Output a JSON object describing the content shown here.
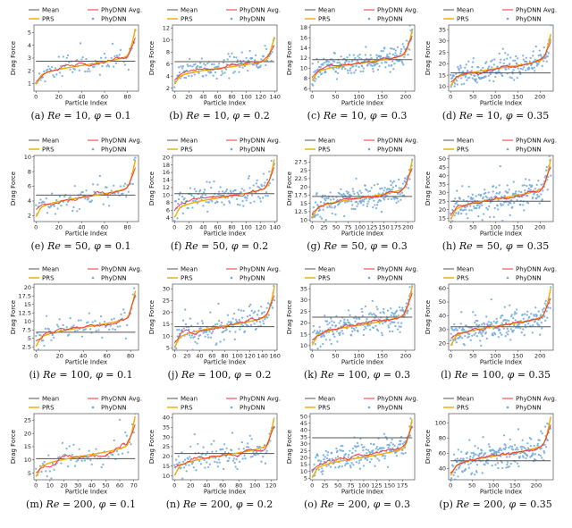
{
  "figure": {
    "xlabel": "Particle Index",
    "ylabel": "Drag Force",
    "legend": {
      "mean": "Mean",
      "prs": "PRS",
      "avg": "PhyDNN Avg.",
      "phydnn": "PhyDNN"
    },
    "colors": {
      "mean": "#555555",
      "prs": "#f2a900",
      "avg": "#e8353b",
      "phydnn": "#6fa8dc"
    }
  },
  "chart_data": [
    {
      "type": "scatter",
      "id": "a",
      "caption": "(a) Re = 10, φ = 0.1",
      "re": "10",
      "phi": "0.1",
      "n": 88,
      "xticks": [
        0,
        20,
        40,
        60,
        80
      ],
      "yticks": [
        1,
        2,
        3,
        4,
        5
      ],
      "ylim": [
        0.4,
        5.6
      ],
      "prs": [
        0.9,
        5.3
      ],
      "mean": 2.75,
      "seed": 11
    },
    {
      "type": "scatter",
      "id": "b",
      "caption": "(b) Re = 10, φ = 0.2",
      "re": "10",
      "phi": "0.2",
      "n": 140,
      "xticks": [
        0,
        20,
        40,
        60,
        80,
        100,
        120,
        140
      ],
      "yticks": [
        2,
        4,
        6,
        8,
        10,
        12
      ],
      "ylim": [
        1.5,
        12.5
      ],
      "prs": [
        2.6,
        10.5
      ],
      "mean": 6.4,
      "seed": 23
    },
    {
      "type": "scatter",
      "id": "c",
      "caption": "(c) Re = 10, φ = 0.3",
      "re": "10",
      "phi": "0.3",
      "n": 215,
      "xticks": [
        0,
        50,
        100,
        150,
        200
      ],
      "yticks": [
        6,
        8,
        10,
        12,
        14,
        16,
        18
      ],
      "ylim": [
        5.5,
        18.5
      ],
      "prs": [
        7.5,
        17.5
      ],
      "mean": 11.7,
      "seed": 37
    },
    {
      "type": "scatter",
      "id": "d",
      "caption": "(d) Re = 10, φ = 0.35",
      "re": "10",
      "phi": "0.35",
      "n": 225,
      "xticks": [
        0,
        50,
        100,
        150,
        200
      ],
      "yticks": [
        10,
        15,
        20,
        25,
        30,
        35
      ],
      "ylim": [
        8,
        37
      ],
      "prs": [
        10,
        33
      ],
      "mean": 16,
      "seed": 41
    },
    {
      "type": "scatter",
      "id": "e",
      "caption": "(e) Re = 50, φ = 0.1",
      "re": "50",
      "phi": "0.1",
      "n": 88,
      "xticks": [
        0,
        20,
        40,
        60,
        80
      ],
      "yticks": [
        2,
        4,
        6,
        8,
        10
      ],
      "ylim": [
        1.2,
        10.2
      ],
      "prs": [
        1.8,
        9.6
      ],
      "mean": 4.8,
      "seed": 53
    },
    {
      "type": "scatter",
      "id": "f",
      "caption": "(f) Re = 50, φ = 0.2",
      "re": "50",
      "phi": "0.2",
      "n": 140,
      "xticks": [
        0,
        20,
        40,
        60,
        80,
        100,
        120,
        140
      ],
      "yticks": [
        4,
        6,
        8,
        10,
        12,
        14,
        16,
        18,
        20
      ],
      "ylim": [
        3,
        20.5
      ],
      "prs": [
        4,
        19.5
      ],
      "mean": 10.4,
      "seed": 67
    },
    {
      "type": "scatter",
      "id": "g",
      "caption": "(g) Re = 50, φ = 0.3",
      "re": "50",
      "phi": "0.3",
      "n": 210,
      "xticks": [
        0,
        25,
        50,
        75,
        100,
        125,
        150,
        175,
        200
      ],
      "yticks": [
        10.0,
        12.5,
        15.0,
        17.5,
        20.0,
        22.5,
        25.0,
        27.5
      ],
      "ylim": [
        9.5,
        29.5
      ],
      "prs": [
        10.5,
        28
      ],
      "mean": 17.1,
      "seed": 71
    },
    {
      "type": "scatter",
      "id": "h",
      "caption": "(h) Re = 50, φ = 0.35",
      "re": "50",
      "phi": "0.35",
      "n": 225,
      "xticks": [
        0,
        50,
        100,
        150,
        200
      ],
      "yticks": [
        15,
        20,
        25,
        30,
        35,
        40,
        45,
        50
      ],
      "ylim": [
        13,
        52
      ],
      "prs": [
        14,
        50
      ],
      "mean": 25,
      "seed": 83
    },
    {
      "type": "scatter",
      "id": "i",
      "caption": "(i) Re = 100, φ = 0.1",
      "re": "100",
      "phi": "0.1",
      "n": 85,
      "xticks": [
        0,
        20,
        40,
        60,
        80
      ],
      "yticks": [
        2.5,
        5.0,
        7.5,
        10.0,
        12.5,
        15.0,
        17.5,
        20.0
      ],
      "ylim": [
        1.5,
        21
      ],
      "prs": [
        2.5,
        19
      ],
      "mean": 6.8,
      "seed": 97
    },
    {
      "type": "scatter",
      "id": "j",
      "caption": "(j) Re = 100, φ = 0.2",
      "re": "100",
      "phi": "0.2",
      "n": 160,
      "xticks": [
        0,
        20,
        40,
        60,
        80,
        100,
        120,
        140,
        160
      ],
      "yticks": [
        5,
        10,
        15,
        20,
        25,
        30
      ],
      "ylim": [
        4,
        32
      ],
      "prs": [
        5,
        31
      ],
      "mean": 14,
      "seed": 101
    },
    {
      "type": "scatter",
      "id": "k",
      "caption": "(k) Re = 100, φ = 0.3",
      "re": "100",
      "phi": "0.3",
      "n": 215,
      "xticks": [
        0,
        50,
        100,
        150,
        200
      ],
      "yticks": [
        10,
        15,
        20,
        25,
        30,
        35
      ],
      "ylim": [
        8,
        37
      ],
      "prs": [
        10,
        36
      ],
      "mean": 22.5,
      "seed": 113
    },
    {
      "type": "scatter",
      "id": "l",
      "caption": "(l) Re = 100, φ = 0.35",
      "re": "100",
      "phi": "0.35",
      "n": 225,
      "xticks": [
        0,
        50,
        100,
        150,
        200
      ],
      "yticks": [
        20,
        30,
        40,
        50,
        60
      ],
      "ylim": [
        15,
        63
      ],
      "prs": [
        18,
        60
      ],
      "mean": 32,
      "seed": 127
    },
    {
      "type": "scatter",
      "id": "m",
      "caption": "(m) Re = 200, φ = 0.1",
      "re": "200",
      "phi": "0.1",
      "n": 72,
      "xticks": [
        0,
        10,
        20,
        30,
        40,
        50,
        60,
        70
      ],
      "yticks": [
        5,
        10,
        15,
        20,
        25
      ],
      "ylim": [
        2.5,
        27.5
      ],
      "prs": [
        3.5,
        26.5
      ],
      "mean": 10.5,
      "seed": 131
    },
    {
      "type": "scatter",
      "id": "n",
      "caption": "(n) Re = 200, φ = 0.2",
      "re": "200",
      "phi": "0.2",
      "n": 125,
      "xticks": [
        0,
        20,
        40,
        60,
        80,
        100,
        120
      ],
      "yticks": [
        10,
        15,
        20,
        25,
        30,
        35,
        40
      ],
      "ylim": [
        8,
        42
      ],
      "prs": [
        10,
        40
      ],
      "mean": 21.5,
      "seed": 139
    },
    {
      "type": "scatter",
      "id": "o",
      "caption": "(o) Re = 200, φ = 0.3",
      "re": "200",
      "phi": "0.3",
      "n": 195,
      "xticks": [
        0,
        25,
        50,
        75,
        100,
        125,
        150,
        175
      ],
      "yticks": [
        5,
        10,
        15,
        20,
        25,
        30,
        35,
        40,
        45,
        50
      ],
      "ylim": [
        4,
        52
      ],
      "prs": [
        5,
        48
      ],
      "mean": 34.5,
      "seed": 149
    },
    {
      "type": "scatter",
      "id": "p",
      "caption": "(p) Re = 200, φ = 0.35",
      "re": "200",
      "phi": "0.35",
      "n": 235,
      "xticks": [
        0,
        50,
        100,
        150,
        200
      ],
      "yticks": [
        40,
        60,
        80,
        100
      ],
      "ylim": [
        25,
        112
      ],
      "prs": [
        30,
        108
      ],
      "mean": 50,
      "seed": 157
    }
  ]
}
